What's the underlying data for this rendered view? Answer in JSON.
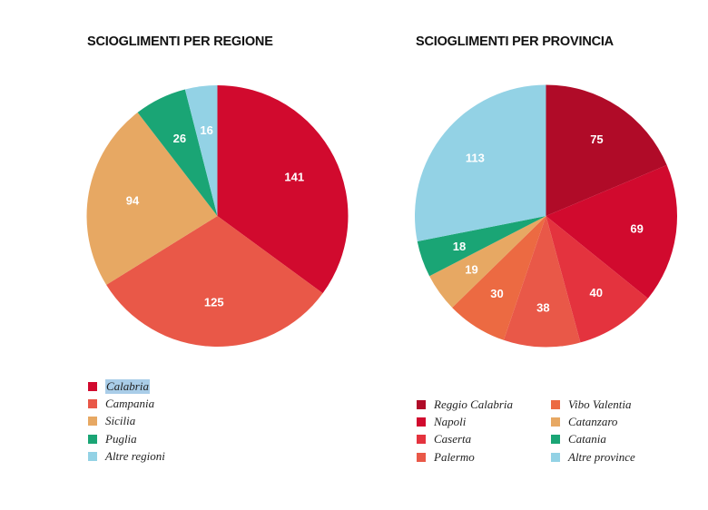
{
  "chart_data": [
    {
      "type": "pie",
      "title": "SCIOGLIMENTI PER REGIONE",
      "categories": [
        "Calabria",
        "Campania",
        "Sicilia",
        "Puglia",
        "Altre regioni"
      ],
      "values": [
        141,
        125,
        94,
        26,
        16
      ],
      "colors": [
        "#d10a2e",
        "#e95848",
        "#e7a863",
        "#1aa575",
        "#93d2e5"
      ],
      "selected_legend_item": "Calabria",
      "legend_placement": "bottom"
    },
    {
      "type": "pie",
      "title": "SCIOGLIMENTI PER PROVINCIA",
      "categories": [
        "Reggio Calabria",
        "Napoli",
        "Caserta",
        "Palermo",
        "Vibo Valentia",
        "Catanzaro",
        "Catania",
        "Altre province"
      ],
      "values": [
        75,
        69,
        40,
        38,
        30,
        19,
        18,
        113
      ],
      "colors": [
        "#b00b28",
        "#d10a2e",
        "#e4333e",
        "#e95848",
        "#ec6a42",
        "#e7a863",
        "#1aa575",
        "#93d2e5"
      ],
      "legend_placement": "bottom"
    }
  ]
}
